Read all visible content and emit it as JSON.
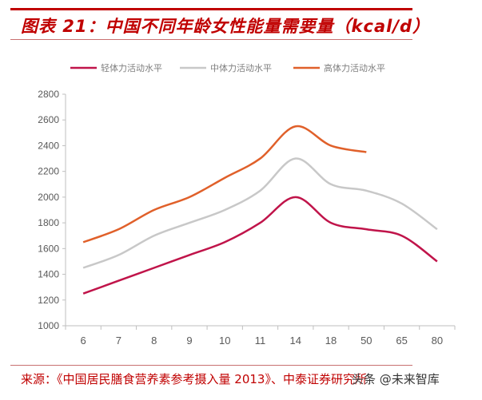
{
  "title": "图表 21：中国不同年龄女性能量需要量（kcal/d）",
  "source": "来源：《中国居民膳食营养素参考摄入量 2013》、中泰证券研究所",
  "watermark": "头条 @未来智库",
  "chart_data": {
    "type": "line",
    "title": "图表 21：中国不同年龄女性能量需要量（kcal/d）",
    "categories": [
      "6",
      "7",
      "8",
      "9",
      "10",
      "11",
      "14",
      "18",
      "50",
      "65",
      "80"
    ],
    "ylim": [
      1000,
      2800
    ],
    "yticks": [
      1000,
      1200,
      1400,
      1600,
      1800,
      2000,
      2200,
      2400,
      2600,
      2800
    ],
    "grid": false,
    "legend": "top",
    "series": [
      {
        "name": "轻体力活动水平",
        "color": "#c0144a",
        "values": [
          1250,
          1350,
          1450,
          1550,
          1650,
          1800,
          2000,
          1800,
          1750,
          1700,
          1500
        ]
      },
      {
        "name": "中体力活动水平",
        "color": "#c8c8c8",
        "values": [
          1450,
          1550,
          1700,
          1800,
          1900,
          2050,
          2300,
          2100,
          2050,
          1950,
          1750
        ]
      },
      {
        "name": "高体力活动水平",
        "color": "#e0602a",
        "values": [
          1650,
          1750,
          1900,
          2000,
          2150,
          2300,
          2550,
          2400,
          2350,
          null,
          null
        ]
      }
    ]
  }
}
